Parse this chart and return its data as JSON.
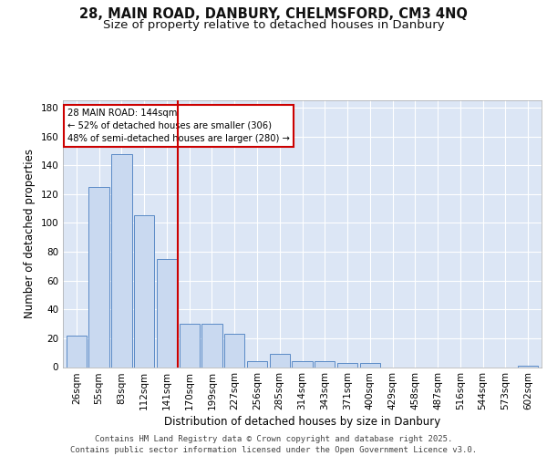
{
  "title_line1": "28, MAIN ROAD, DANBURY, CHELMSFORD, CM3 4NQ",
  "title_line2": "Size of property relative to detached houses in Danbury",
  "xlabel": "Distribution of detached houses by size in Danbury",
  "ylabel": "Number of detached properties",
  "bar_labels": [
    "26sqm",
    "55sqm",
    "83sqm",
    "112sqm",
    "141sqm",
    "170sqm",
    "199sqm",
    "227sqm",
    "256sqm",
    "285sqm",
    "314sqm",
    "343sqm",
    "371sqm",
    "400sqm",
    "429sqm",
    "458sqm",
    "487sqm",
    "516sqm",
    "544sqm",
    "573sqm",
    "602sqm"
  ],
  "bar_values": [
    22,
    125,
    148,
    105,
    75,
    30,
    30,
    23,
    4,
    9,
    4,
    4,
    3,
    3,
    0,
    0,
    0,
    0,
    0,
    0,
    1
  ],
  "bar_color": "#c9d9f0",
  "bar_edge_color": "#5a8ac6",
  "vline_x": 4.5,
  "vline_color": "#cc0000",
  "annotation_text": "28 MAIN ROAD: 144sqm\n← 52% of detached houses are smaller (306)\n48% of semi-detached houses are larger (280) →",
  "annotation_box_edge": "#cc0000",
  "ylim": [
    0,
    185
  ],
  "yticks": [
    0,
    20,
    40,
    60,
    80,
    100,
    120,
    140,
    160,
    180
  ],
  "background_color": "#dce6f5",
  "footer_text": "Contains HM Land Registry data © Crown copyright and database right 2025.\nContains public sector information licensed under the Open Government Licence v3.0.",
  "title_fontsize": 10.5,
  "subtitle_fontsize": 9.5,
  "axis_label_fontsize": 8.5,
  "tick_fontsize": 7.5,
  "footer_fontsize": 6.5
}
